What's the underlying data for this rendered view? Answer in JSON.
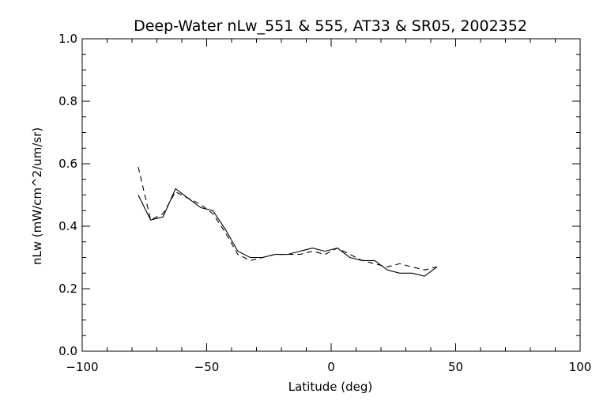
{
  "chart_data": {
    "type": "line",
    "title": "Deep-Water nLw_551 & 555, AT33 & SR05, 2002352",
    "xlabel": "Latitude (deg)",
    "ylabel": "nLw (mW/cm^2/um/sr)",
    "xlim": [
      -100,
      100
    ],
    "ylim": [
      0.0,
      1.0
    ],
    "xticks": [
      -100,
      -50,
      0,
      50,
      100
    ],
    "xtick_labels": [
      "−100",
      "−50",
      "0",
      "50",
      "100"
    ],
    "yticks": [
      0.0,
      0.2,
      0.4,
      0.6,
      0.8,
      1.0
    ],
    "ytick_labels": [
      "0.0",
      "0.2",
      "0.4",
      "0.6",
      "0.8",
      "1.0"
    ],
    "grid": false,
    "series": [
      {
        "style": "solid",
        "x": [
          -77.5,
          -72.5,
          -67.5,
          -62.5,
          -57.5,
          -52.5,
          -47.5,
          -42.5,
          -37.5,
          -32.5,
          -27.5,
          -22.5,
          -17.5,
          -12.5,
          -7.5,
          -2.5,
          2.5,
          7.5,
          12.5,
          17.5,
          22.5,
          27.5,
          32.5,
          37.5,
          42.5
        ],
        "y": [
          0.5,
          0.42,
          0.43,
          0.52,
          0.49,
          0.46,
          0.45,
          0.39,
          0.32,
          0.3,
          0.3,
          0.31,
          0.31,
          0.32,
          0.33,
          0.32,
          0.33,
          0.3,
          0.29,
          0.29,
          0.26,
          0.25,
          0.25,
          0.24,
          0.27
        ]
      },
      {
        "style": "dashed",
        "x": [
          -77.5,
          -72.5,
          -67.5,
          -62.5,
          -57.5,
          -52.5,
          -47.5,
          -42.5,
          -37.5,
          -32.5,
          -27.5,
          -22.5,
          -17.5,
          -12.5,
          -7.5,
          -2.5,
          2.5,
          7.5,
          12.5,
          17.5,
          22.5,
          27.5,
          32.5,
          37.5,
          42.5
        ],
        "y": [
          0.59,
          0.42,
          0.44,
          0.51,
          0.49,
          0.47,
          0.44,
          0.38,
          0.31,
          0.29,
          0.3,
          0.31,
          0.31,
          0.31,
          0.32,
          0.31,
          0.33,
          0.31,
          0.29,
          0.28,
          0.27,
          0.28,
          0.27,
          0.26,
          0.27
        ]
      }
    ]
  }
}
